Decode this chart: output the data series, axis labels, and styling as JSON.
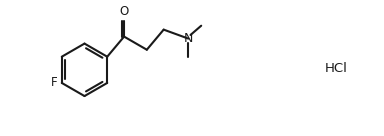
{
  "background_color": "#ffffff",
  "line_color": "#1a1a1a",
  "line_width": 1.5,
  "font_size_labels": 8.5,
  "font_size_hcl": 9.5,
  "label_F": "F",
  "label_O": "O",
  "label_N": "N",
  "label_HCl": "HCl",
  "fig_width": 3.84,
  "fig_height": 1.36,
  "dpi": 100,
  "xlim": [
    0.0,
    10.5
  ],
  "ylim": [
    0.5,
    4.0
  ]
}
